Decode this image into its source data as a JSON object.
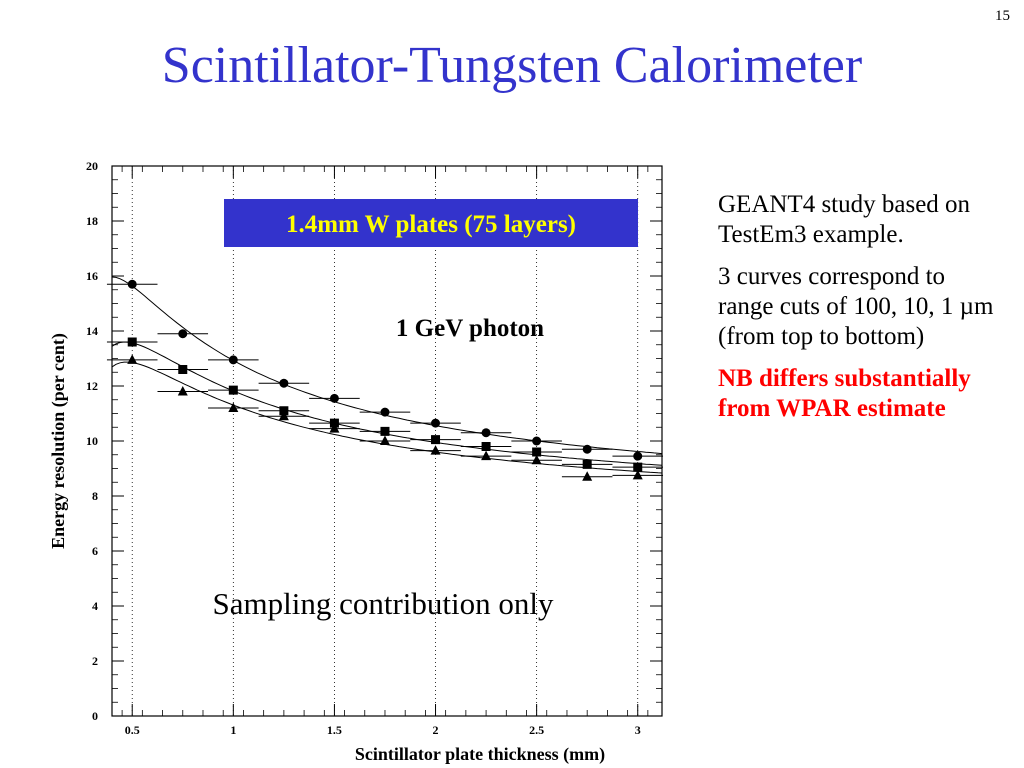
{
  "slide": {
    "number": "15",
    "title": "Scintillator-Tungsten Calorimeter"
  },
  "notes": {
    "p1": "GEANT4 study based on TestEm3 example.",
    "p2": "3 curves correspond to range cuts of 100, 10, 1 µm (from top to bottom)",
    "p3": "NB differs substantially from WPAR estimate"
  },
  "chart_data": {
    "type": "scatter",
    "xlabel": "Scintillator plate thickness (mm)",
    "ylabel": "Energy resolution (per cent)",
    "xlim": [
      0.4,
      3.12
    ],
    "ylim": [
      0,
      20
    ],
    "x_ticks": [
      "0.5",
      "1",
      "1.5",
      "2",
      "2.5",
      "3"
    ],
    "y_ticks": [
      "0",
      "2",
      "4",
      "6",
      "8",
      "10",
      "12",
      "14",
      "16",
      "18",
      "20"
    ],
    "grid": "vertical dotted",
    "annotations": {
      "box_label": "1.4mm W plates (75 layers)",
      "particle": "1 GeV photon",
      "note": "Sampling contribution only"
    },
    "x": [
      0.5,
      0.75,
      1.0,
      1.25,
      1.5,
      1.75,
      2.0,
      2.25,
      2.5,
      2.75,
      3.0
    ],
    "series": [
      {
        "marker": "circle",
        "values": [
          15.7,
          13.9,
          12.95,
          12.1,
          11.55,
          11.05,
          10.65,
          10.3,
          10.0,
          9.7,
          9.45
        ]
      },
      {
        "marker": "square",
        "values": [
          13.6,
          12.6,
          11.85,
          11.1,
          10.65,
          10.35,
          10.05,
          9.8,
          9.6,
          9.15,
          9.05
        ]
      },
      {
        "marker": "triangle",
        "values": [
          12.95,
          11.8,
          11.2,
          10.9,
          10.45,
          10.0,
          9.65,
          9.45,
          9.3,
          8.7,
          8.75
        ]
      }
    ],
    "colors": {
      "title": "#3333cc",
      "box": "#3333cc",
      "box_text": "#ffff00",
      "nb": "#ff0000"
    }
  }
}
